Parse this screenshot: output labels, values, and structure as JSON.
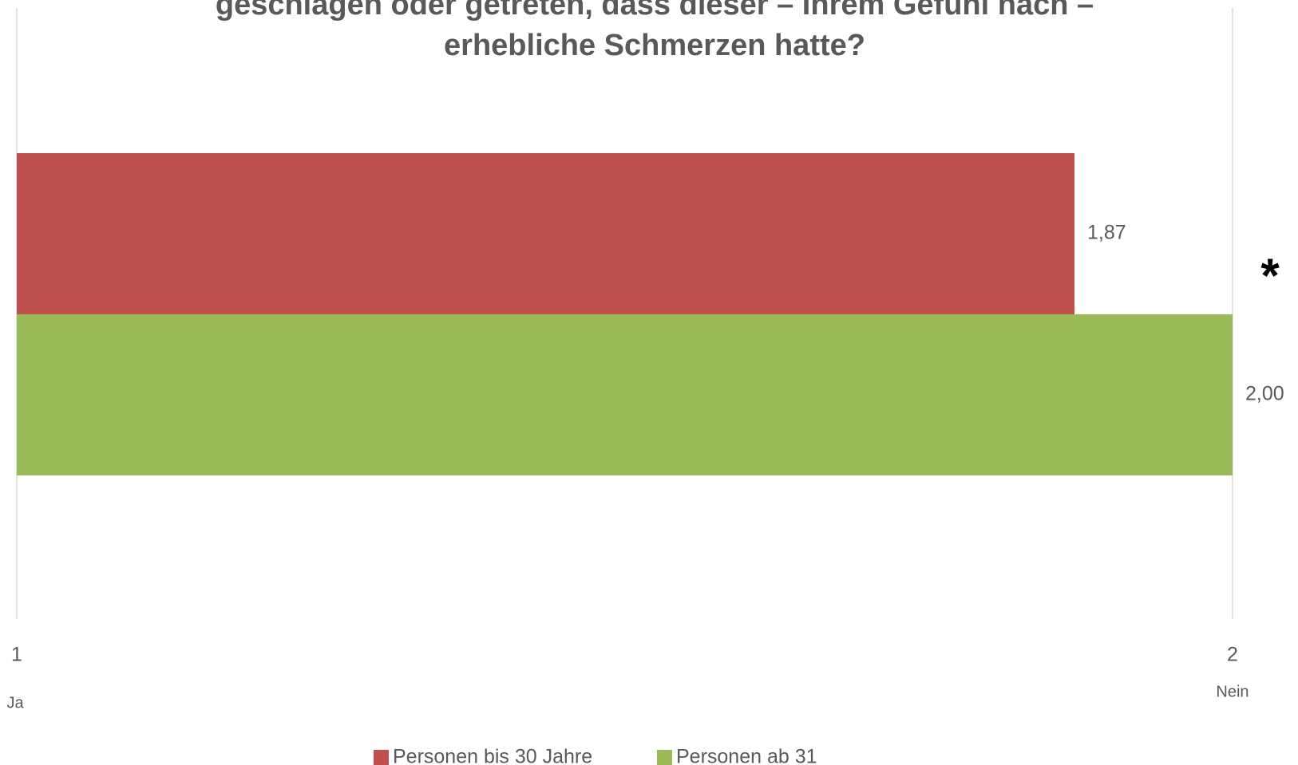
{
  "chart_data": {
    "type": "barh",
    "title": [
      "geschlagen oder getreten, dass dieser – Ihrem Gefühl nach –",
      "erhebliche Schmerzen hatte?"
    ],
    "series": [
      {
        "name": "Personen bis 30 Jahre",
        "color": "#c0504d",
        "values": [
          1.87
        ],
        "value_labels": [
          "1,87"
        ]
      },
      {
        "name": "Personen ab 31",
        "color": "#9bbb59",
        "values": [
          2.0
        ],
        "value_labels": [
          "2,00"
        ]
      }
    ],
    "xlim": [
      1,
      2
    ],
    "xticks": [
      1,
      2
    ],
    "xtick_sublabels": [
      "Ja",
      "Nein"
    ],
    "annotation": "*",
    "grid": true,
    "legend": "bottom"
  }
}
